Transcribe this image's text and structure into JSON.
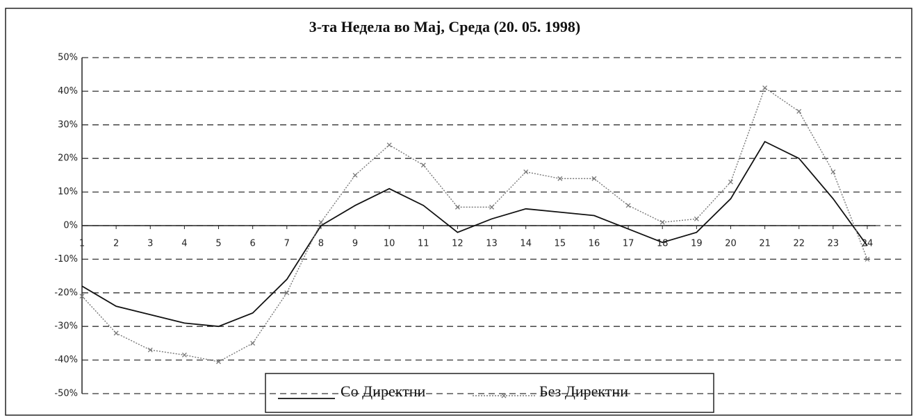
{
  "chart_data": {
    "type": "line",
    "title": "3-та Недела во Мај, Среда (20. 05. 1998)",
    "categories": [
      "1",
      "2",
      "3",
      "4",
      "5",
      "6",
      "7",
      "8",
      "9",
      "10",
      "11",
      "12",
      "13",
      "14",
      "15",
      "16",
      "17",
      "18",
      "19",
      "20",
      "21",
      "22",
      "23",
      "24"
    ],
    "series": [
      {
        "name": "Со Директни",
        "color": "#111111",
        "values": [
          -18,
          -24,
          -26.5,
          -29,
          -30,
          -26,
          -16,
          0,
          6,
          11,
          6,
          -2,
          2,
          5,
          4,
          3,
          -1,
          -5,
          -2,
          8,
          25,
          20,
          8,
          -6
        ]
      },
      {
        "name": "Без Директни",
        "color": "#777777",
        "values": [
          -21,
          -32,
          -37,
          -38.5,
          -40.5,
          -35,
          -20,
          1,
          15,
          24,
          18,
          5.5,
          5.5,
          16,
          14,
          14,
          6,
          1,
          2,
          13,
          41,
          34,
          16,
          -10
        ]
      }
    ],
    "ylim": [
      -50,
      50
    ],
    "yticks": [
      {
        "value": 50,
        "label": "50%"
      },
      {
        "value": 40,
        "label": "40%"
      },
      {
        "value": 30,
        "label": "30%"
      },
      {
        "value": 20,
        "label": "20%"
      },
      {
        "value": 10,
        "label": "10%"
      },
      {
        "value": 0,
        "label": "0%"
      },
      {
        "value": -10,
        "label": "-10%"
      },
      {
        "value": -20,
        "label": "-20%"
      },
      {
        "value": -30,
        "label": "-30%"
      },
      {
        "value": -40,
        "label": "-40%"
      },
      {
        "value": -50,
        "label": "-50%"
      }
    ],
    "grid": true
  }
}
